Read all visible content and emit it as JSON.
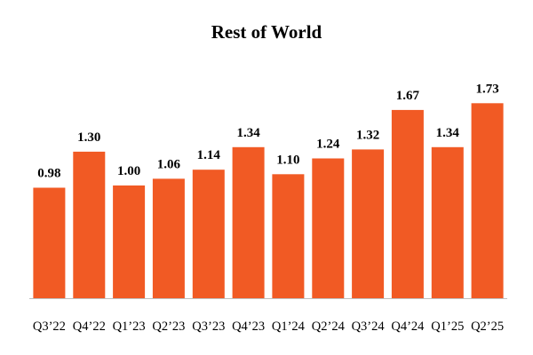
{
  "chart_data": {
    "type": "bar",
    "title": "Rest of World",
    "xlabel": "",
    "ylabel": "",
    "categories": [
      "Q3’22",
      "Q4’22",
      "Q1’23",
      "Q2’23",
      "Q3’23",
      "Q4’23",
      "Q1’24",
      "Q2’24",
      "Q3’24",
      "Q4’24",
      "Q1’25",
      "Q2’25"
    ],
    "values": [
      0.98,
      1.3,
      1.0,
      1.06,
      1.14,
      1.34,
      1.1,
      1.24,
      1.32,
      1.67,
      1.34,
      1.73
    ],
    "value_labels": [
      "0.98",
      "1.30",
      "1.00",
      "1.06",
      "1.14",
      "1.34",
      "1.10",
      "1.24",
      "1.32",
      "1.67",
      "1.34",
      "1.73"
    ],
    "ylim": [
      0,
      2.0
    ],
    "grid": false,
    "legend": "none",
    "bar_color": "#F15A24",
    "axis_color": "#BFBFBF"
  }
}
